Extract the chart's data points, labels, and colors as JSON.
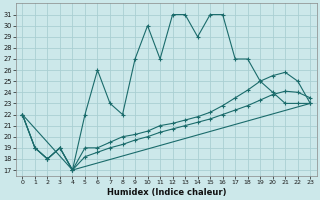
{
  "xlabel": "Humidex (Indice chaleur)",
  "background_color": "#cce8ea",
  "grid_color": "#aacfd3",
  "line_color": "#1a6b6b",
  "xlim": [
    -0.5,
    23.5
  ],
  "ylim": [
    16.5,
    32
  ],
  "yticks": [
    17,
    18,
    19,
    20,
    21,
    22,
    23,
    24,
    25,
    26,
    27,
    28,
    29,
    30,
    31
  ],
  "xticks": [
    0,
    1,
    2,
    3,
    4,
    5,
    6,
    7,
    8,
    9,
    10,
    11,
    12,
    13,
    14,
    15,
    16,
    17,
    18,
    19,
    20,
    21,
    22,
    23
  ],
  "line1_x": [
    0,
    1,
    2,
    3,
    4,
    5,
    6,
    7,
    8,
    9,
    10,
    11,
    12,
    13,
    14,
    15,
    16,
    17,
    18,
    19,
    20,
    21,
    22,
    23
  ],
  "line1_y": [
    22,
    19,
    18,
    19,
    17,
    22,
    26,
    23,
    22,
    27,
    30,
    27,
    31,
    31,
    29,
    31,
    31,
    27,
    27,
    25,
    24,
    23,
    23,
    23
  ],
  "line2_x": [
    0,
    1,
    2,
    3,
    4,
    5,
    6,
    7,
    8,
    9,
    10,
    11,
    12,
    13,
    14,
    15,
    16,
    17,
    18,
    19,
    20,
    21,
    22,
    23
  ],
  "line2_y": [
    22,
    19,
    18,
    19,
    17,
    19,
    19,
    19.5,
    20,
    20.2,
    20.5,
    21,
    21.2,
    21.5,
    21.8,
    22.2,
    22.8,
    23.5,
    24.2,
    25,
    25.5,
    25.8,
    25,
    23
  ],
  "line3_x": [
    0,
    1,
    2,
    3,
    4,
    5,
    6,
    7,
    8,
    9,
    10,
    11,
    12,
    13,
    14,
    15,
    16,
    17,
    18,
    19,
    20,
    21,
    22,
    23
  ],
  "line3_y": [
    22,
    19,
    18,
    19,
    17,
    18.2,
    18.6,
    19.0,
    19.3,
    19.7,
    20.0,
    20.4,
    20.7,
    21.0,
    21.3,
    21.6,
    22.0,
    22.4,
    22.8,
    23.3,
    23.8,
    24.1,
    24.0,
    23.5
  ],
  "line4_x": [
    0,
    4,
    23
  ],
  "line4_y": [
    22,
    17,
    23
  ]
}
